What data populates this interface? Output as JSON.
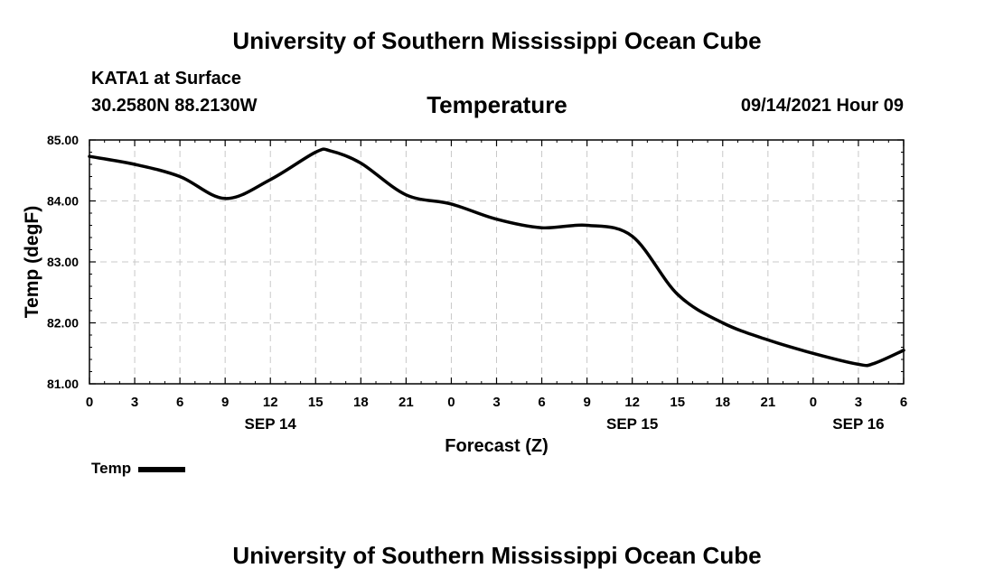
{
  "header": {
    "title": "University of Southern Mississippi Ocean Cube",
    "station": "KATA1 at Surface",
    "coords": "30.2580N  88.2130W",
    "parameter": "Temperature",
    "datetime": "09/14/2021 Hour 09"
  },
  "footer": {
    "title": "University of Southern Mississippi Ocean Cube"
  },
  "legend": {
    "label": "Temp",
    "color": "#000000"
  },
  "chart_data": {
    "type": "line",
    "title": "Temperature",
    "xlabel": "Forecast (Z)",
    "ylabel": "Temp (degF)",
    "xlim": [
      0,
      54
    ],
    "ylim": [
      81.0,
      85.0
    ],
    "grid": true,
    "x_tick_values": [
      0,
      3,
      6,
      9,
      12,
      15,
      18,
      21,
      24,
      27,
      30,
      33,
      36,
      39,
      42,
      45,
      48,
      51,
      54
    ],
    "x_tick_labels": [
      "0",
      "3",
      "6",
      "9",
      "12",
      "15",
      "18",
      "21",
      "0",
      "3",
      "6",
      "9",
      "12",
      "15",
      "18",
      "21",
      "0",
      "3",
      "6"
    ],
    "date_labels": [
      {
        "x": 12,
        "label": "SEP 14"
      },
      {
        "x": 36,
        "label": "SEP 15"
      },
      {
        "x": 51,
        "label": "SEP 16"
      }
    ],
    "y_tick_values": [
      81.0,
      82.0,
      83.0,
      84.0,
      85.0
    ],
    "y_tick_labels": [
      "81.00",
      "82.00",
      "83.00",
      "84.00",
      "85.00"
    ],
    "series": [
      {
        "name": "Temp",
        "color": "#000000",
        "x": [
          0,
          3,
          6,
          9,
          12,
          15,
          16,
          18,
          21,
          24,
          27,
          30,
          33,
          36,
          39,
          42,
          45,
          48,
          51,
          52,
          54
        ],
        "values": [
          84.73,
          84.6,
          84.4,
          84.04,
          84.35,
          84.8,
          84.82,
          84.62,
          84.1,
          83.95,
          83.7,
          83.56,
          83.6,
          83.42,
          82.47,
          82.0,
          81.72,
          81.5,
          81.32,
          81.33,
          81.55
        ]
      }
    ]
  }
}
